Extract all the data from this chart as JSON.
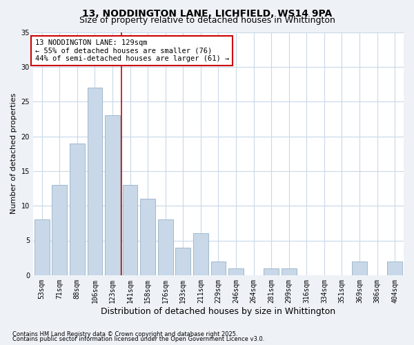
{
  "title": "13, NODDINGTON LANE, LICHFIELD, WS14 9PA",
  "subtitle": "Size of property relative to detached houses in Whittington",
  "xlabel": "Distribution of detached houses by size in Whittington",
  "ylabel": "Number of detached properties",
  "categories": [
    "53sqm",
    "71sqm",
    "88sqm",
    "106sqm",
    "123sqm",
    "141sqm",
    "158sqm",
    "176sqm",
    "193sqm",
    "211sqm",
    "229sqm",
    "246sqm",
    "264sqm",
    "281sqm",
    "299sqm",
    "316sqm",
    "334sqm",
    "351sqm",
    "369sqm",
    "386sqm",
    "404sqm"
  ],
  "values": [
    8,
    13,
    19,
    27,
    23,
    13,
    11,
    8,
    4,
    6,
    2,
    1,
    0,
    1,
    1,
    0,
    0,
    0,
    2,
    0,
    2
  ],
  "bar_color": "#c8d8e8",
  "bar_edge_color": "#a0b8cc",
  "vline_color": "#cc0000",
  "vline_pos": 4.5,
  "annotation_text": "13 NODDINGTON LANE: 129sqm\n← 55% of detached houses are smaller (76)\n44% of semi-detached houses are larger (61) →",
  "annotation_box_color": "#ffffff",
  "annotation_box_edge_color": "#cc0000",
  "ylim": [
    0,
    35
  ],
  "yticks": [
    0,
    5,
    10,
    15,
    20,
    25,
    30,
    35
  ],
  "footnote1": "Contains HM Land Registry data © Crown copyright and database right 2025.",
  "footnote2": "Contains public sector information licensed under the Open Government Licence v3.0.",
  "background_color": "#eef2f7",
  "plot_bg_color": "#ffffff",
  "grid_color": "#c8d8e8",
  "title_fontsize": 10,
  "subtitle_fontsize": 9,
  "xlabel_fontsize": 9,
  "ylabel_fontsize": 8,
  "tick_fontsize": 7,
  "annotation_fontsize": 7.5
}
